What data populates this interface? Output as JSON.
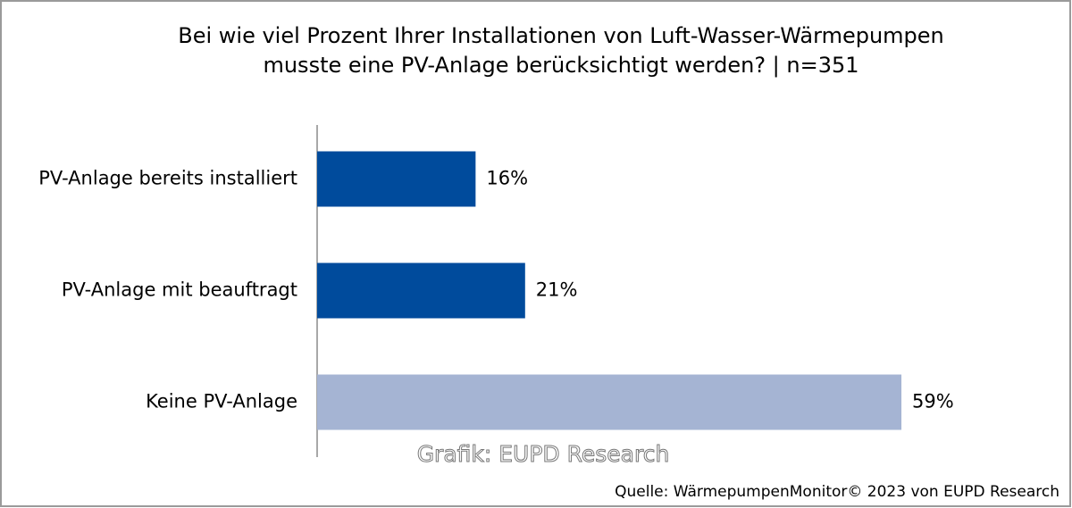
{
  "chart_data": {
    "type": "hbar",
    "title": [
      "Bei wie viel Prozent Ihrer Installationen von Luft-Wasser-Wärmepumpen",
      "musste eine PV-Anlage berücksichtigt werden? | n=351"
    ],
    "categories": [
      "PV-Anlage bereits installiert",
      "PV-Anlage mit beauftragt",
      "Keine PV-Anlage"
    ],
    "values": [
      16,
      21,
      59
    ],
    "value_labels": [
      "16%",
      "21%",
      "59%"
    ],
    "colors": [
      "#004b9c",
      "#004b9c",
      "#a5b4d3"
    ],
    "xlim": [
      0,
      70
    ],
    "watermark": "Grafik: EUPD Research",
    "source": "Quelle: WärmepumpenMonitor©  2023 von EUPD Research"
  }
}
